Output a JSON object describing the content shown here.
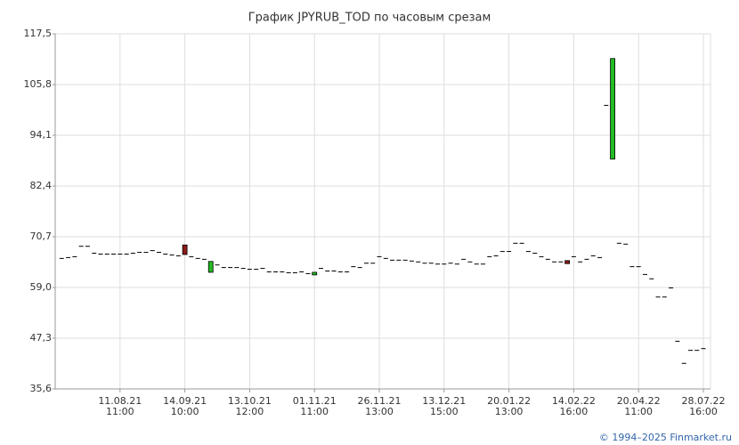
{
  "chart_data": {
    "type": "candlestick",
    "title": "График JPYRUB_TOD по часовым срезам",
    "footer": "© 1994–2025 Finmarket.ru",
    "categories": [
      null,
      null,
      null,
      null,
      null,
      null,
      null,
      null,
      null,
      "11.08.21\n11:00",
      null,
      null,
      null,
      null,
      null,
      null,
      null,
      null,
      null,
      "14.09.21\n10:00",
      null,
      null,
      null,
      null,
      null,
      null,
      null,
      null,
      null,
      "13.10.21\n12:00",
      null,
      null,
      null,
      null,
      null,
      null,
      null,
      null,
      null,
      "01.11.21\n11:00",
      null,
      null,
      null,
      null,
      null,
      null,
      null,
      null,
      null,
      "26.11.21\n13:00",
      null,
      null,
      null,
      null,
      null,
      null,
      null,
      null,
      null,
      "13.12.21\n15:00",
      null,
      null,
      null,
      null,
      null,
      null,
      null,
      null,
      null,
      "20.01.22\n13:00",
      null,
      null,
      null,
      null,
      null,
      null,
      null,
      null,
      null,
      "14.02.22\n16:00",
      null,
      null,
      null,
      null,
      null,
      null,
      null,
      null,
      null,
      "20.04.22\n11:00",
      null,
      null,
      null,
      null,
      null,
      null,
      null,
      null,
      null,
      "28.07.22\n16:00"
    ],
    "open": [
      65.8,
      66.0,
      66.2,
      68.6,
      68.6,
      67.0,
      66.8,
      66.8,
      66.8,
      66.8,
      66.8,
      67.0,
      67.2,
      67.2,
      67.6,
      67.2,
      66.8,
      66.6,
      66.4,
      68.8,
      66.2,
      65.8,
      65.6,
      62.5,
      64.3,
      63.7,
      63.7,
      63.7,
      63.5,
      63.3,
      63.3,
      63.5,
      62.7,
      62.7,
      62.7,
      62.5,
      62.5,
      62.7,
      62.3,
      61.9,
      63.5,
      62.9,
      62.9,
      62.7,
      62.7,
      63.9,
      63.7,
      64.7,
      64.7,
      66.2,
      65.8,
      65.4,
      65.4,
      65.4,
      65.2,
      65.0,
      64.7,
      64.7,
      64.5,
      64.5,
      64.7,
      64.5,
      65.6,
      65.0,
      64.5,
      64.5,
      66.2,
      66.4,
      67.4,
      67.4,
      69.3,
      69.3,
      67.4,
      67.0,
      66.2,
      65.6,
      65.0,
      65.0,
      65.2,
      66.2,
      65.0,
      65.6,
      66.4,
      66.0,
      101.1,
      88.6,
      69.3,
      69.1,
      63.9,
      63.9,
      62.1,
      61.1,
      56.9,
      56.9,
      59.0,
      46.7,
      41.6,
      44.6,
      44.6,
      45.0
    ],
    "close": [
      65.8,
      66.0,
      66.2,
      68.6,
      68.6,
      67.0,
      66.8,
      66.8,
      66.8,
      66.8,
      66.8,
      67.0,
      67.2,
      67.2,
      67.6,
      67.2,
      66.8,
      66.6,
      66.4,
      66.6,
      66.2,
      65.8,
      65.6,
      65.0,
      64.3,
      63.7,
      63.7,
      63.7,
      63.5,
      63.3,
      63.3,
      63.5,
      62.7,
      62.7,
      62.7,
      62.5,
      62.5,
      62.7,
      62.3,
      62.5,
      63.5,
      62.9,
      62.9,
      62.7,
      62.7,
      63.9,
      63.7,
      64.7,
      64.7,
      66.2,
      65.8,
      65.4,
      65.4,
      65.4,
      65.2,
      65.0,
      64.7,
      64.7,
      64.5,
      64.5,
      64.7,
      64.5,
      65.6,
      65.0,
      64.5,
      64.5,
      66.2,
      66.4,
      67.4,
      67.4,
      69.3,
      69.3,
      67.4,
      67.0,
      66.2,
      65.6,
      65.0,
      65.0,
      64.5,
      66.2,
      65.0,
      65.6,
      66.4,
      66.0,
      101.1,
      111.8,
      69.3,
      69.1,
      63.9,
      63.9,
      62.1,
      61.1,
      56.9,
      56.9,
      59.0,
      46.7,
      41.6,
      44.6,
      44.6,
      45.0
    ],
    "up_color": "#22bb22",
    "down_color": "#8b1a1a",
    "flat_color": "#000000",
    "ylim": [
      35.6,
      117.5
    ],
    "yticks": [
      {
        "value": 35.6,
        "label": "35,6"
      },
      {
        "value": 47.3,
        "label": "47,3"
      },
      {
        "value": 59.0,
        "label": "59,0"
      },
      {
        "value": 70.7,
        "label": "70,7"
      },
      {
        "value": 82.4,
        "label": "82,4"
      },
      {
        "value": 94.1,
        "label": "94,1"
      },
      {
        "value": 105.8,
        "label": "105,8"
      },
      {
        "value": 117.5,
        "label": "117,5"
      }
    ],
    "grid": true
  }
}
